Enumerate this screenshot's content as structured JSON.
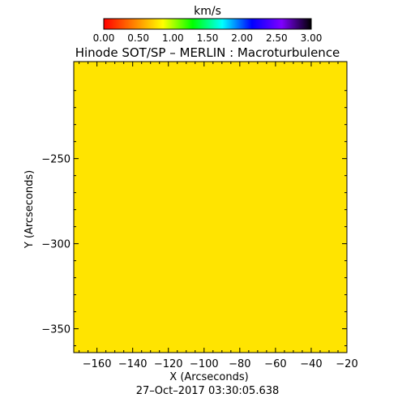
{
  "chart_data": {
    "type": "heatmap",
    "title": "Hinode SOT/SP – MERLIN : Macroturbulence",
    "xlabel": "X (Arcseconds)",
    "ylabel": "Y (Arcseconds)",
    "timestamp": "27–Oct–2017 03:30:05.638",
    "colorbar": {
      "unit": "km/s",
      "range": [
        0.0,
        3.0
      ],
      "tick_labels": [
        "0.00",
        "0.50",
        "1.00",
        "1.50",
        "2.00",
        "2.50",
        "3.00"
      ],
      "tick_values": [
        0.0,
        0.5,
        1.0,
        1.5,
        2.0,
        2.5,
        3.0
      ],
      "colors": [
        "#ff0000",
        "#ff7f00",
        "#ffff00",
        "#00ff00",
        "#00ffff",
        "#0000ff",
        "#7f00ff",
        "#000000"
      ]
    },
    "xlim": [
      -173,
      -20
    ],
    "ylim": [
      -364,
      -193
    ],
    "x_tick_labels": [
      "−160",
      "−140",
      "−120",
      "−100",
      "−80",
      "−60",
      "−40",
      "−20"
    ],
    "x_tick_values": [
      -160,
      -140,
      -120,
      -100,
      -80,
      -60,
      -40,
      -20
    ],
    "y_tick_labels": [
      "−250",
      "−300",
      "−350"
    ],
    "y_tick_values": [
      -250,
      -300,
      -350
    ],
    "field_value_kms": 1.0,
    "field_color": "#ffe400",
    "grid": false
  }
}
